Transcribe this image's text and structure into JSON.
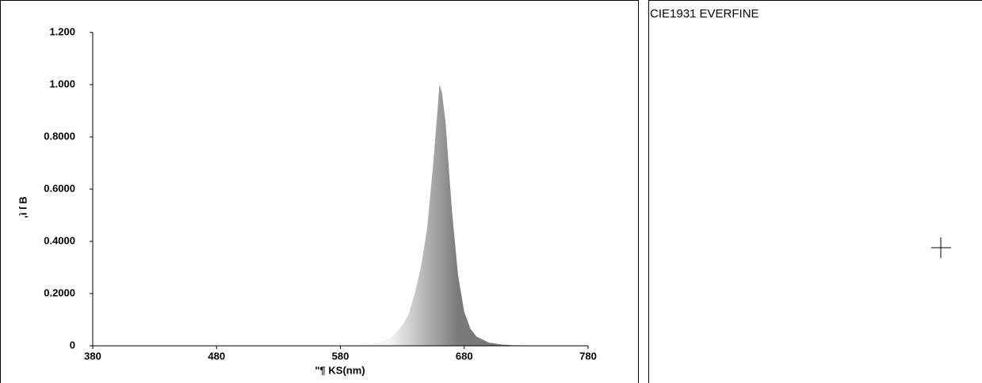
{
  "chart_data": {
    "type": "area",
    "xlabel": "\"¶  KS(nm)",
    "ylabel": ",ì ſ  B",
    "x": [
      380,
      400,
      420,
      440,
      460,
      480,
      500,
      520,
      540,
      560,
      580,
      600,
      610,
      620,
      625,
      630,
      635,
      640,
      645,
      650,
      655,
      658,
      660,
      662,
      665,
      668,
      670,
      675,
      680,
      685,
      690,
      700,
      710,
      720,
      740,
      760,
      780
    ],
    "values": [
      0,
      0,
      0,
      0,
      0,
      0,
      0,
      0,
      0,
      0,
      0,
      0.002,
      0.01,
      0.03,
      0.05,
      0.08,
      0.12,
      0.2,
      0.3,
      0.45,
      0.7,
      0.88,
      1.0,
      0.97,
      0.85,
      0.65,
      0.52,
      0.27,
      0.13,
      0.065,
      0.035,
      0.012,
      0.005,
      0.002,
      0.001,
      0.0005,
      0
    ],
    "color": [
      "#f4f4f4",
      "#7a7a7a"
    ],
    "xlim": [
      380,
      780
    ],
    "ylim": [
      0,
      1.2
    ],
    "xticks": [
      380,
      480,
      580,
      680,
      780
    ],
    "yticks": [
      0,
      {
        "value": 0.2,
        "label": "0.2000"
      },
      {
        "value": 0.4,
        "label": "0.4000"
      },
      {
        "value": 0.6,
        "label": "0.6000"
      },
      {
        "value": 0.8,
        "label": "0.8000"
      },
      {
        "value": 1.0,
        "label": "1.000"
      },
      {
        "value": 1.2,
        "label": "1.200"
      }
    ],
    "grid": false
  },
  "side_panel": {
    "title": "CIE1931 EVERFINE"
  }
}
